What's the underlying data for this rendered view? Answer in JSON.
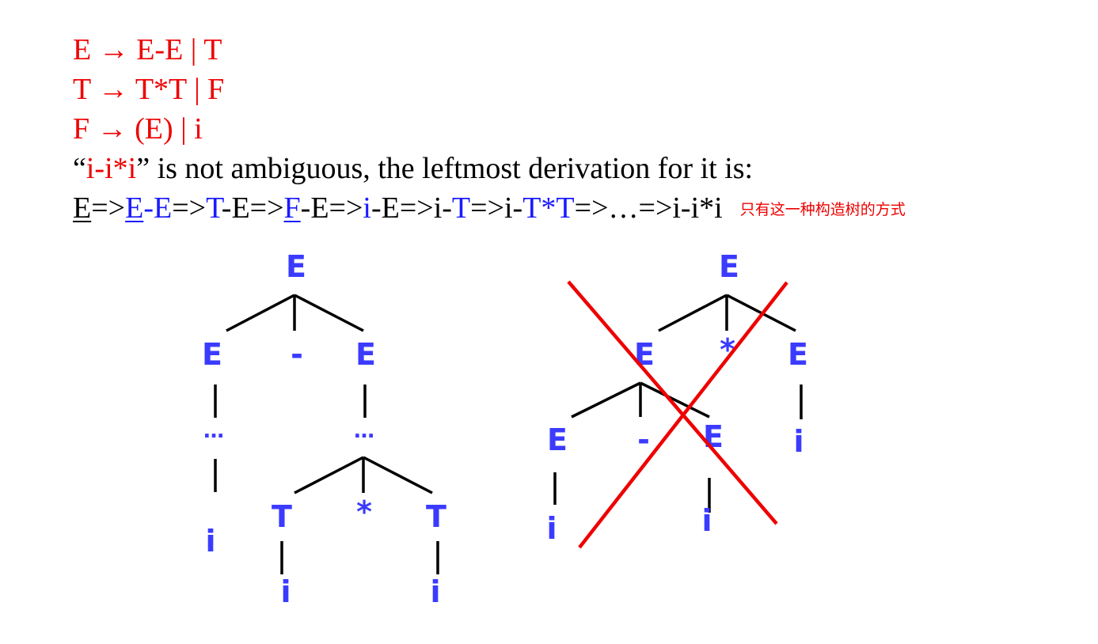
{
  "grammar": {
    "rule1": "E → E-E | T",
    "rule2": "T → T*T | F",
    "rule3": "F → (E) | i"
  },
  "statement": {
    "open_quote": "“",
    "string": "i-i*i",
    "rest": "” is not ambiguous, the leftmost derivation for it is:"
  },
  "derivation": {
    "s1": "E",
    "s2": "=>",
    "s3": "E",
    "s4": "-E",
    "s5": "=>",
    "s6": "T",
    "s7": "-E=>",
    "s8": "F",
    "s9": "-E=>",
    "s10": "i",
    "s11": "-E=>i-",
    "s12": "T",
    "s13": "=>i-",
    "s14": "T*T",
    "s15": "=>…=>i-i*i",
    "note": "只有这一种构造树的方式"
  },
  "tree_left": {
    "root": "E",
    "left": "E",
    "op": "-",
    "right": "E",
    "left_dots": "…",
    "right_dots": "…",
    "left_leaf": "i",
    "t1": "T",
    "star": "*",
    "t2": "T",
    "t1_leaf": "i",
    "t2_leaf": "i"
  },
  "tree_right": {
    "root": "E",
    "left": "E",
    "op": "*",
    "right": "E",
    "sub_left": "E",
    "sub_op": "-",
    "sub_right": "E",
    "sub_left_leaf": "i",
    "sub_right_leaf": "i",
    "right_leaf": "i"
  },
  "colors": {
    "grammar": "#ee0000",
    "tree_nodes": "#3b3bff",
    "cross": "#ee0000"
  }
}
